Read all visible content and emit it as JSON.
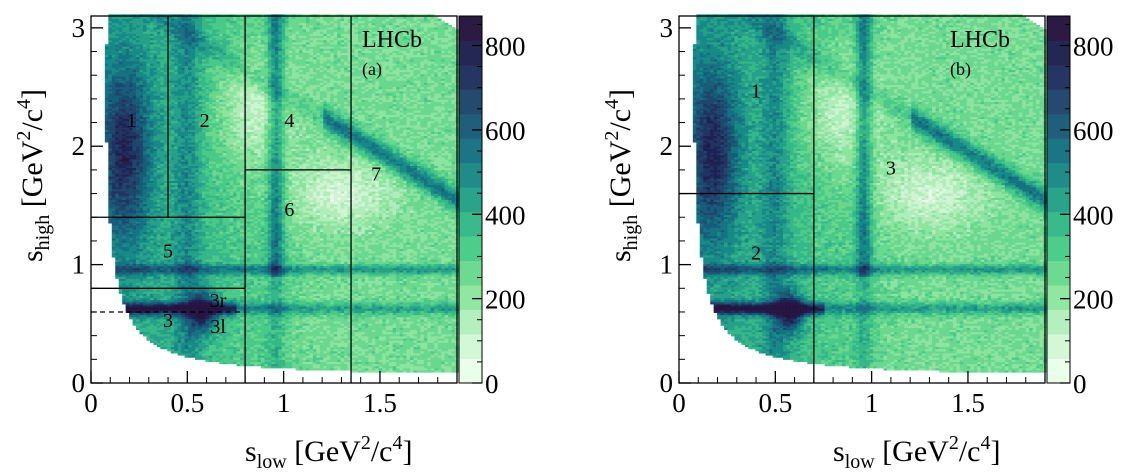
{
  "chart_data": [
    {
      "type": "heatmap",
      "panel_label": "(a)",
      "experiment_label": "LHCb",
      "xlabel": "s_low [GeV²/c⁴]",
      "ylabel": "s_high [GeV²/c⁴]",
      "xlabel_parts": {
        "main": "s",
        "sub": "low",
        "unit": " [GeV",
        "sup1": "2",
        "mid": "/c",
        "sup2": "4",
        "end": "]"
      },
      "ylabel_parts": {
        "main": "s",
        "sub": "high",
        "unit": " [GeV",
        "sup1": "2",
        "mid": "/c",
        "sup2": "4",
        "end": "]"
      },
      "xlim": [
        0,
        1.9
      ],
      "ylim": [
        0,
        3.1
      ],
      "x_ticks": [
        0,
        0.5,
        1,
        1.5
      ],
      "x_tick_labels": [
        "0",
        "0.5",
        "1",
        "1.5"
      ],
      "y_ticks": [
        0,
        1,
        2,
        3
      ],
      "y_tick_labels": [
        "0",
        "1",
        "2",
        "3"
      ],
      "colorbar": {
        "min": 0,
        "max": 870,
        "ticks": [
          0,
          200,
          400,
          600,
          800
        ],
        "tick_labels": [
          "0",
          "200",
          "400",
          "600",
          "800"
        ]
      },
      "boundaries": [
        {
          "x": [
            0.4,
            0.4
          ],
          "y": [
            1.4,
            3.1
          ],
          "style": "solid"
        },
        {
          "x": [
            0.8,
            0.8
          ],
          "y": [
            0,
            3.1
          ],
          "style": "solid"
        },
        {
          "x": [
            1.35,
            1.35
          ],
          "y": [
            0,
            3.1
          ],
          "style": "solid"
        },
        {
          "x": [
            0,
            0.8
          ],
          "y": [
            1.4,
            1.4
          ],
          "style": "solid"
        },
        {
          "x": [
            0.8,
            1.35
          ],
          "y": [
            1.8,
            1.8
          ],
          "style": "solid"
        },
        {
          "x": [
            0,
            0.8
          ],
          "y": [
            0.8,
            0.8
          ],
          "style": "solid"
        },
        {
          "x": [
            0,
            0.8
          ],
          "y": [
            0.6,
            0.6
          ],
          "style": "dashed"
        }
      ],
      "regions": [
        {
          "label": "1",
          "x": 0.21,
          "y": 2.2
        },
        {
          "label": "2",
          "x": 0.59,
          "y": 2.2
        },
        {
          "label": "4",
          "x": 1.03,
          "y": 2.2
        },
        {
          "label": "7",
          "x": 1.48,
          "y": 1.75
        },
        {
          "label": "6",
          "x": 1.03,
          "y": 1.45
        },
        {
          "label": "5",
          "x": 0.4,
          "y": 1.1
        },
        {
          "label": "3r",
          "x": 0.66,
          "y": 0.68
        },
        {
          "label": "3",
          "x": 0.4,
          "y": 0.51
        },
        {
          "label": "3l",
          "x": 0.66,
          "y": 0.46
        }
      ]
    },
    {
      "type": "heatmap",
      "panel_label": "(b)",
      "experiment_label": "LHCb",
      "xlabel": "s_low [GeV²/c⁴]",
      "ylabel": "s_high [GeV²/c⁴]",
      "xlabel_parts": {
        "main": "s",
        "sub": "low",
        "unit": " [GeV",
        "sup1": "2",
        "mid": "/c",
        "sup2": "4",
        "end": "]"
      },
      "ylabel_parts": {
        "main": "s",
        "sub": "high",
        "unit": " [GeV",
        "sup1": "2",
        "mid": "/c",
        "sup2": "4",
        "end": "]"
      },
      "xlim": [
        0,
        1.9
      ],
      "ylim": [
        0,
        3.1
      ],
      "x_ticks": [
        0,
        0.5,
        1,
        1.5
      ],
      "x_tick_labels": [
        "0",
        "0.5",
        "1",
        "1.5"
      ],
      "y_ticks": [
        0,
        1,
        2,
        3
      ],
      "y_tick_labels": [
        "0",
        "1",
        "2",
        "3"
      ],
      "colorbar": {
        "min": 0,
        "max": 870,
        "ticks": [
          0,
          200,
          400,
          600,
          800
        ],
        "tick_labels": [
          "0",
          "200",
          "400",
          "600",
          "800"
        ]
      },
      "boundaries": [
        {
          "x": [
            0.7,
            0.7
          ],
          "y": [
            0,
            3.1
          ],
          "style": "solid"
        },
        {
          "x": [
            0,
            0.7
          ],
          "y": [
            1.6,
            1.6
          ],
          "style": "solid"
        }
      ],
      "regions": [
        {
          "label": "1",
          "x": 0.4,
          "y": 2.45
        },
        {
          "label": "3",
          "x": 1.1,
          "y": 1.8
        },
        {
          "label": "2",
          "x": 0.4,
          "y": 1.08
        }
      ]
    }
  ],
  "colors": {
    "palette": [
      "#eaffe9",
      "#d3f8d6",
      "#b4f0be",
      "#8fe7a2",
      "#6cdb91",
      "#4ccd8a",
      "#38ba8b",
      "#2aa38b",
      "#1f8c89",
      "#1c7584",
      "#1f5f7b",
      "#244a6f",
      "#263663",
      "#242654",
      "#2c1a44"
    ]
  }
}
